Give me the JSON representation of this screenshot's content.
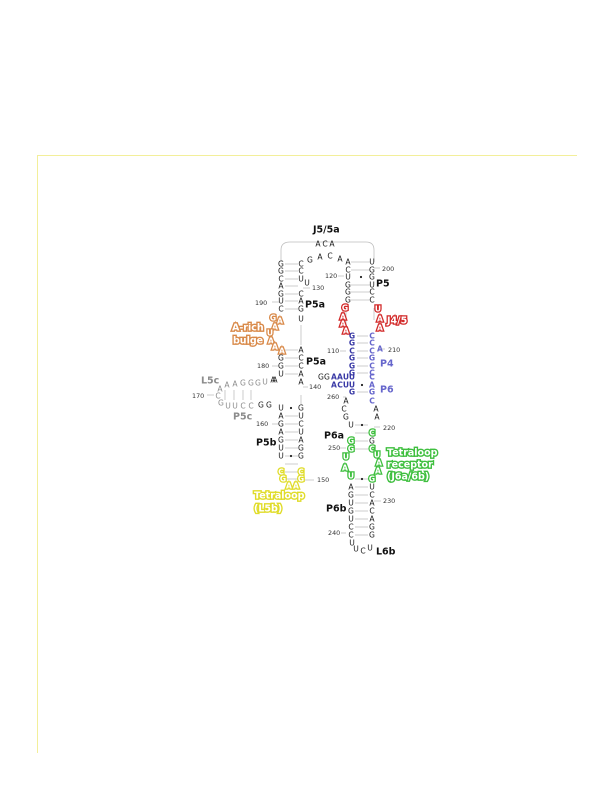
{
  "labels": {
    "J5_5a": "J5/5a",
    "P5": "P5",
    "P5a_top": "P5a",
    "P5a_bottom": "P5a",
    "J4_5": "J4/5",
    "P4": "P4",
    "P6": "P6",
    "L5c": "L5c",
    "P5c": "P5c",
    "P5b": "P5b",
    "P6a": "P6a",
    "P6b": "P6b",
    "L6b": "L6b",
    "a_rich_line1": "A-rich",
    "a_rich_line2": "bulge",
    "tetraloop_line1": "Tetraloop",
    "tetraloop_line2": "(L5b)",
    "receptor_line1": "Tetraloop",
    "receptor_line2": "receptor",
    "receptor_line3": "(J6a/6b)"
  },
  "numbers": [
    "200",
    "120",
    "130",
    "190",
    "110",
    "210",
    "180",
    "140",
    "170",
    "260",
    "160",
    "220",
    "250",
    "150",
    "230",
    "240"
  ],
  "nucleotides": [
    {
      "id": "j55a-1",
      "b": "A",
      "c": "black"
    },
    {
      "id": "j55a-2",
      "b": "C",
      "c": "black"
    },
    {
      "id": "j55a-3",
      "b": "A",
      "c": "black"
    },
    {
      "id": "p5a-l1",
      "b": "G",
      "c": "black"
    },
    {
      "id": "p5a-l2",
      "b": "G",
      "c": "black"
    },
    {
      "id": "p5a-l3",
      "b": "C",
      "c": "black"
    },
    {
      "id": "p5a-l4",
      "b": "A",
      "c": "black"
    },
    {
      "id": "p5a-l5",
      "b": "G",
      "c": "black"
    },
    {
      "id": "p5a-l6",
      "b": "U",
      "c": "black"
    },
    {
      "id": "p5a-l7",
      "b": "C",
      "c": "black"
    },
    {
      "id": "p5a-r1",
      "b": "C",
      "c": "black"
    },
    {
      "id": "p5a-r2",
      "b": "C",
      "c": "black"
    },
    {
      "id": "p5a-r3",
      "b": "U",
      "c": "black"
    },
    {
      "id": "p5a-r4",
      "b": "C",
      "c": "black"
    },
    {
      "id": "p5a-r5",
      "b": "A",
      "c": "black"
    },
    {
      "id": "p5a-r6",
      "b": "G",
      "c": "black"
    },
    {
      "id": "p5a-r7",
      "b": "U",
      "c": "black"
    },
    {
      "id": "top-1",
      "b": "G",
      "c": "black"
    },
    {
      "id": "top-2",
      "b": "A",
      "c": "black"
    },
    {
      "id": "top-3",
      "b": "C",
      "c": "black"
    },
    {
      "id": "top-4",
      "b": "A",
      "c": "black"
    },
    {
      "id": "top-u",
      "b": "U",
      "c": "black"
    },
    {
      "id": "p5-l1",
      "b": "A",
      "c": "black"
    },
    {
      "id": "p5-l2",
      "b": "C",
      "c": "black"
    },
    {
      "id": "p5-l3",
      "b": "U",
      "c": "black"
    },
    {
      "id": "p5-l4",
      "b": "G",
      "c": "black"
    },
    {
      "id": "p5-l5",
      "b": "G",
      "c": "black"
    },
    {
      "id": "p5-l6",
      "b": "G",
      "c": "black"
    },
    {
      "id": "p5-r1",
      "b": "U",
      "c": "black"
    },
    {
      "id": "p5-r2",
      "b": "G",
      "c": "black"
    },
    {
      "id": "p5-r3",
      "b": "G",
      "c": "black"
    },
    {
      "id": "p5-r4",
      "b": "U",
      "c": "black"
    },
    {
      "id": "p5-r5",
      "b": "C",
      "c": "black"
    },
    {
      "id": "p5-r6",
      "b": "C",
      "c": "black"
    },
    {
      "id": "j45-l1",
      "b": "G",
      "c": "red"
    },
    {
      "id": "j45-l2",
      "b": "A",
      "c": "red"
    },
    {
      "id": "j45-l3",
      "b": "A",
      "c": "red"
    },
    {
      "id": "j45-l4",
      "b": "A",
      "c": "red"
    },
    {
      "id": "j45-r1",
      "b": "U",
      "c": "red"
    },
    {
      "id": "j45-r2",
      "b": "A",
      "c": "red"
    },
    {
      "id": "j45-r3",
      "b": "A",
      "c": "red"
    },
    {
      "id": "ar-1",
      "b": "G",
      "c": "orange"
    },
    {
      "id": "ar-2",
      "b": "A",
      "c": "orange"
    },
    {
      "id": "ar-3",
      "b": "A",
      "c": "orange"
    },
    {
      "id": "ar-4",
      "b": "U",
      "c": "orange"
    },
    {
      "id": "ar-5",
      "b": "A",
      "c": "orange"
    },
    {
      "id": "ar-6",
      "b": "A",
      "c": "orange"
    },
    {
      "id": "ar-7",
      "b": "A",
      "c": "orange"
    },
    {
      "id": "p5a2-r1",
      "b": "A",
      "c": "black"
    },
    {
      "id": "p5a2-r2",
      "b": "C",
      "c": "black"
    },
    {
      "id": "p5a2-r3",
      "b": "C",
      "c": "black"
    },
    {
      "id": "p5a2-r4",
      "b": "A",
      "c": "black"
    },
    {
      "id": "p5a2-r5",
      "b": "A",
      "c": "black"
    },
    {
      "id": "p5a2-l1",
      "b": "G",
      "c": "black"
    },
    {
      "id": "p5a2-l2",
      "b": "G",
      "c": "black"
    },
    {
      "id": "p5a2-l3",
      "b": "U",
      "c": "black"
    },
    {
      "id": "p5a2-l4",
      "b": "A",
      "c": "black"
    },
    {
      "id": "p4-l1",
      "b": "G",
      "c": "blue"
    },
    {
      "id": "p4-l2",
      "b": "G",
      "c": "blue"
    },
    {
      "id": "p4-l3",
      "b": "C",
      "c": "blue"
    },
    {
      "id": "p4-l4",
      "b": "G",
      "c": "blue"
    },
    {
      "id": "p4-l5",
      "b": "G",
      "c": "blue"
    },
    {
      "id": "p4-l6",
      "b": "G",
      "c": "blue"
    },
    {
      "id": "p4-r1",
      "b": "C",
      "c": "blue-light"
    },
    {
      "id": "p4-r2",
      "b": "C",
      "c": "blue-light"
    },
    {
      "id": "p4-r3",
      "b": "C",
      "c": "blue-light"
    },
    {
      "id": "p4-r4",
      "b": "G",
      "c": "blue-light"
    },
    {
      "id": "p4-r5",
      "b": "C",
      "c": "blue-light"
    },
    {
      "id": "p4-r6",
      "b": "C",
      "c": "blue-light"
    },
    {
      "id": "p4-r7",
      "b": "A",
      "c": "blue-light"
    },
    {
      "id": "p6-l1",
      "b": "G",
      "c": "black"
    },
    {
      "id": "p6-l2",
      "b": "G",
      "c": "black"
    },
    {
      "id": "p6-l3",
      "b": "A",
      "c": "blue"
    },
    {
      "id": "p6-l4",
      "b": "A",
      "c": "blue"
    },
    {
      "id": "p6-l5",
      "b": "U",
      "c": "blue"
    },
    {
      "id": "p6-l6",
      "b": "U",
      "c": "blue"
    },
    {
      "id": "p6-m1",
      "b": "A",
      "c": "blue"
    },
    {
      "id": "p6-m2",
      "b": "C",
      "c": "blue"
    },
    {
      "id": "p6-m3",
      "b": "U",
      "c": "blue"
    },
    {
      "id": "p6-m4",
      "b": "U",
      "c": "blue"
    },
    {
      "id": "p6-m5",
      "b": "G",
      "c": "blue"
    },
    {
      "id": "p6-r1",
      "b": "C",
      "c": "blue-light"
    },
    {
      "id": "p6-r2",
      "b": "A",
      "c": "blue-light"
    },
    {
      "id": "p6-r3",
      "b": "G",
      "c": "blue-light"
    },
    {
      "id": "p6-r4",
      "b": "C",
      "c": "blue-light"
    },
    {
      "id": "l5c-1",
      "b": "A",
      "c": "grey"
    },
    {
      "id": "l5c-2",
      "b": "A",
      "c": "grey"
    },
    {
      "id": "l5c-3",
      "b": "A",
      "c": "grey"
    },
    {
      "id": "l5c-4",
      "b": "G",
      "c": "grey"
    },
    {
      "id": "l5c-5",
      "b": "G",
      "c": "grey"
    },
    {
      "id": "l5c-6",
      "b": "G",
      "c": "grey"
    },
    {
      "id": "l5c-7",
      "b": "U",
      "c": "grey"
    },
    {
      "id": "l5c-8",
      "b": "A",
      "c": "black"
    },
    {
      "id": "l5c-9",
      "b": "C",
      "c": "grey"
    },
    {
      "id": "l5c-10",
      "b": "G",
      "c": "grey"
    },
    {
      "id": "p5c-1",
      "b": "U",
      "c": "grey"
    },
    {
      "id": "p5c-2",
      "b": "U",
      "c": "grey"
    },
    {
      "id": "p5c-3",
      "b": "C",
      "c": "grey"
    },
    {
      "id": "p5c-4",
      "b": "C",
      "c": "grey"
    },
    {
      "id": "p5c-5",
      "b": "G",
      "c": "black"
    },
    {
      "id": "p5c-6",
      "b": "G",
      "c": "black"
    },
    {
      "id": "p5b-l1",
      "b": "U",
      "c": "black"
    },
    {
      "id": "p5b-l2",
      "b": "A",
      "c": "black"
    },
    {
      "id": "p5b-l3",
      "b": "G",
      "c": "black"
    },
    {
      "id": "p5b-l4",
      "b": "A",
      "c": "black"
    },
    {
      "id": "p5b-l5",
      "b": "G",
      "c": "black"
    },
    {
      "id": "p5b-l6",
      "b": "U",
      "c": "black"
    },
    {
      "id": "p5b-l7",
      "b": "U",
      "c": "black"
    },
    {
      "id": "p5b-r1",
      "b": "G",
      "c": "black"
    },
    {
      "id": "p5b-r2",
      "b": "U",
      "c": "black"
    },
    {
      "id": "p5b-r3",
      "b": "C",
      "c": "black"
    },
    {
      "id": "p5b-r4",
      "b": "U",
      "c": "black"
    },
    {
      "id": "p5b-r5",
      "b": "A",
      "c": "black"
    },
    {
      "id": "p5b-r6",
      "b": "G",
      "c": "black"
    },
    {
      "id": "p5b-r7",
      "b": "G",
      "c": "black"
    },
    {
      "id": "tl-1",
      "b": "C",
      "c": "yellow"
    },
    {
      "id": "tl-2",
      "b": "G",
      "c": "yellow"
    },
    {
      "id": "tl-3",
      "b": "A",
      "c": "yellow"
    },
    {
      "id": "tl-4",
      "b": "A",
      "c": "yellow"
    },
    {
      "id": "tl-5",
      "b": "G",
      "c": "yellow"
    },
    {
      "id": "tl-6",
      "b": "C",
      "c": "yellow"
    },
    {
      "id": "p6a-l1",
      "b": "A",
      "c": "black"
    },
    {
      "id": "p6a-l2",
      "b": "C",
      "c": "black"
    },
    {
      "id": "p6a-l3",
      "b": "G",
      "c": "black"
    },
    {
      "id": "p6a-l4",
      "b": "U",
      "c": "black"
    },
    {
      "id": "p6a-r1",
      "b": "A",
      "c": "black"
    },
    {
      "id": "p6a-r2",
      "b": "A",
      "c": "black"
    },
    {
      "id": "p6a-r3",
      "b": "G",
      "c": "black"
    },
    {
      "id": "tr-1",
      "b": "G",
      "c": "green"
    },
    {
      "id": "tr-2",
      "b": "G",
      "c": "green"
    },
    {
      "id": "tr-3",
      "b": "U",
      "c": "green"
    },
    {
      "id": "tr-4",
      "b": "A",
      "c": "green"
    },
    {
      "id": "tr-5",
      "b": "U",
      "c": "green"
    },
    {
      "id": "tr-6",
      "b": "C",
      "c": "green"
    },
    {
      "id": "tr-7",
      "b": "C",
      "c": "green"
    },
    {
      "id": "tr-8",
      "b": "U",
      "c": "green"
    },
    {
      "id": "tr-9",
      "b": "A",
      "c": "green"
    },
    {
      "id": "tr-10",
      "b": "A",
      "c": "green"
    },
    {
      "id": "tr-11",
      "b": "G",
      "c": "green"
    },
    {
      "id": "p6b-l1",
      "b": "A",
      "c": "black"
    },
    {
      "id": "p6b-l2",
      "b": "G",
      "c": "black"
    },
    {
      "id": "p6b-l3",
      "b": "U",
      "c": "black"
    },
    {
      "id": "p6b-l4",
      "b": "G",
      "c": "black"
    },
    {
      "id": "p6b-l5",
      "b": "U",
      "c": "black"
    },
    {
      "id": "p6b-l6",
      "b": "C",
      "c": "black"
    },
    {
      "id": "p6b-l7",
      "b": "C",
      "c": "black"
    },
    {
      "id": "p6b-r1",
      "b": "U",
      "c": "black"
    },
    {
      "id": "p6b-r2",
      "b": "C",
      "c": "black"
    },
    {
      "id": "p6b-r3",
      "b": "A",
      "c": "black"
    },
    {
      "id": "p6b-r4",
      "b": "C",
      "c": "black"
    },
    {
      "id": "p6b-r5",
      "b": "A",
      "c": "black"
    },
    {
      "id": "p6b-r6",
      "b": "G",
      "c": "black"
    },
    {
      "id": "p6b-r7",
      "b": "G",
      "c": "black"
    },
    {
      "id": "l6b-1",
      "b": "U",
      "c": "black"
    },
    {
      "id": "l6b-2",
      "b": "U",
      "c": "black"
    },
    {
      "id": "l6b-3",
      "b": "C",
      "c": "black"
    },
    {
      "id": "l6b-4",
      "b": "U",
      "c": "black"
    }
  ]
}
